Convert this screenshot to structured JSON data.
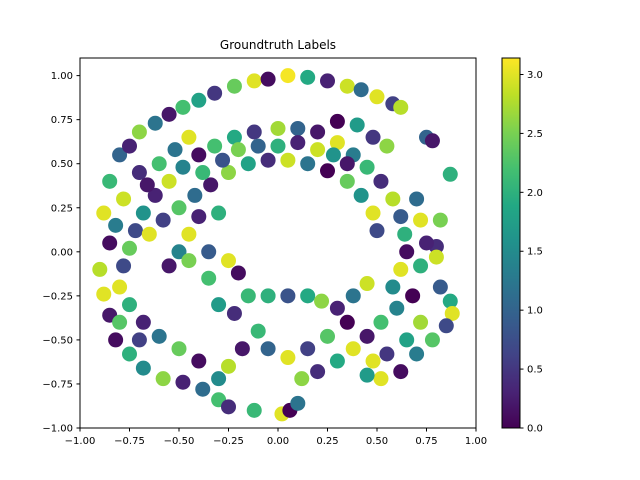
{
  "chart_data": {
    "type": "scatter",
    "title": "Groundtruth Labels",
    "xlabel": "",
    "ylabel": "",
    "xlim": [
      -1.0,
      1.0
    ],
    "ylim": [
      -1.0,
      1.1
    ],
    "x_ticks": [
      -1.0,
      -0.75,
      -0.5,
      -0.25,
      0.0,
      0.25,
      0.5,
      0.75,
      1.0
    ],
    "x_tick_labels": [
      "−1.00",
      "−0.75",
      "−0.50",
      "−0.25",
      "0.00",
      "0.25",
      "0.50",
      "0.75",
      "1.00"
    ],
    "y_ticks": [
      -1.0,
      -0.75,
      -0.5,
      -0.25,
      0.0,
      0.25,
      0.5,
      0.75,
      1.0
    ],
    "y_tick_labels": [
      "−1.00",
      "−0.75",
      "−0.50",
      "−0.25",
      "0.00",
      "0.25",
      "0.50",
      "0.75",
      "1.00"
    ],
    "colormap": "viridis",
    "colorbar_range": [
      0.0,
      3.14
    ],
    "colorbar_ticks": [
      0.0,
      0.5,
      1.0,
      1.5,
      2.0,
      2.5,
      3.0
    ],
    "colorbar_tick_labels": [
      "0.0",
      "0.5",
      "1.0",
      "1.5",
      "2.0",
      "2.5",
      "3.0"
    ],
    "grid": false,
    "points": [
      {
        "x": -0.88,
        "y": 0.22,
        "c": 3.0
      },
      {
        "x": -0.85,
        "y": 0.4,
        "c": 2.1
      },
      {
        "x": -0.8,
        "y": 0.55,
        "c": 1.0
      },
      {
        "x": -0.75,
        "y": 0.6,
        "c": 0.3
      },
      {
        "x": -0.7,
        "y": 0.68,
        "c": 2.6
      },
      {
        "x": -0.62,
        "y": 0.73,
        "c": 1.2
      },
      {
        "x": -0.55,
        "y": 0.78,
        "c": 0.2
      },
      {
        "x": -0.48,
        "y": 0.82,
        "c": 2.2
      },
      {
        "x": -0.4,
        "y": 0.86,
        "c": 1.8
      },
      {
        "x": -0.32,
        "y": 0.9,
        "c": 0.5
      },
      {
        "x": -0.22,
        "y": 0.94,
        "c": 2.4
      },
      {
        "x": -0.12,
        "y": 0.97,
        "c": 3.0
      },
      {
        "x": -0.05,
        "y": 0.98,
        "c": 0.1
      },
      {
        "x": 0.05,
        "y": 1.0,
        "c": 3.1
      },
      {
        "x": 0.15,
        "y": 0.99,
        "c": 1.9
      },
      {
        "x": 0.25,
        "y": 0.97,
        "c": 0.3
      },
      {
        "x": 0.35,
        "y": 0.94,
        "c": 2.9
      },
      {
        "x": 0.42,
        "y": 0.92,
        "c": 1.1
      },
      {
        "x": 0.5,
        "y": 0.88,
        "c": 3.0
      },
      {
        "x": 0.58,
        "y": 0.84,
        "c": 0.6
      },
      {
        "x": 0.62,
        "y": 0.82,
        "c": 2.8
      },
      {
        "x": 0.75,
        "y": 0.65,
        "c": 1.0
      },
      {
        "x": 0.78,
        "y": 0.63,
        "c": 0.2
      },
      {
        "x": 0.87,
        "y": 0.44,
        "c": 2.0
      },
      {
        "x": 0.82,
        "y": 0.18,
        "c": 2.5
      },
      {
        "x": 0.8,
        "y": 0.03,
        "c": 0.4
      },
      {
        "x": 0.8,
        "y": -0.03,
        "c": 2.9
      },
      {
        "x": 0.82,
        "y": -0.2,
        "c": 0.9
      },
      {
        "x": 0.87,
        "y": -0.28,
        "c": 1.9
      },
      {
        "x": 0.88,
        "y": -0.35,
        "c": 3.0
      },
      {
        "x": 0.85,
        "y": -0.42,
        "c": 0.7
      },
      {
        "x": 0.78,
        "y": -0.5,
        "c": 2.3
      },
      {
        "x": 0.7,
        "y": -0.58,
        "c": 1.3
      },
      {
        "x": 0.62,
        "y": -0.68,
        "c": 0.1
      },
      {
        "x": 0.52,
        "y": -0.72,
        "c": 3.0
      },
      {
        "x": 0.45,
        "y": -0.7,
        "c": 1.7
      },
      {
        "x": -0.9,
        "y": -0.1,
        "c": 2.8
      },
      {
        "x": -0.88,
        "y": -0.24,
        "c": 3.0
      },
      {
        "x": -0.85,
        "y": -0.36,
        "c": 0.2
      },
      {
        "x": -0.82,
        "y": -0.5,
        "c": 0.1
      },
      {
        "x": -0.75,
        "y": -0.58,
        "c": 2.0
      },
      {
        "x": -0.68,
        "y": -0.66,
        "c": 1.5
      },
      {
        "x": -0.58,
        "y": -0.72,
        "c": 2.6
      },
      {
        "x": -0.48,
        "y": -0.74,
        "c": 0.3
      },
      {
        "x": -0.38,
        "y": -0.78,
        "c": 1.1
      },
      {
        "x": -0.3,
        "y": -0.84,
        "c": 2.2
      },
      {
        "x": -0.25,
        "y": -0.88,
        "c": 0.4
      },
      {
        "x": -0.12,
        "y": -0.9,
        "c": 2.1
      },
      {
        "x": 0.02,
        "y": -0.92,
        "c": 3.0
      },
      {
        "x": 0.06,
        "y": -0.9,
        "c": 0.0
      },
      {
        "x": 0.1,
        "y": -0.86,
        "c": 1.2
      },
      {
        "x": -0.75,
        "y": 0.02,
        "c": 2.4
      },
      {
        "x": -0.72,
        "y": 0.12,
        "c": 0.7
      },
      {
        "x": -0.68,
        "y": 0.22,
        "c": 1.6
      },
      {
        "x": -0.62,
        "y": 0.32,
        "c": 0.3
      },
      {
        "x": -0.55,
        "y": 0.4,
        "c": 2.9
      },
      {
        "x": -0.48,
        "y": 0.48,
        "c": 1.4
      },
      {
        "x": -0.4,
        "y": 0.55,
        "c": 0.1
      },
      {
        "x": -0.32,
        "y": 0.6,
        "c": 2.2
      },
      {
        "x": -0.22,
        "y": 0.65,
        "c": 1.9
      },
      {
        "x": -0.12,
        "y": 0.68,
        "c": 0.5
      },
      {
        "x": 0.0,
        "y": 0.7,
        "c": 2.7
      },
      {
        "x": 0.1,
        "y": 0.7,
        "c": 1.0
      },
      {
        "x": 0.2,
        "y": 0.68,
        "c": 0.2
      },
      {
        "x": 0.3,
        "y": 0.62,
        "c": 3.0
      },
      {
        "x": 0.38,
        "y": 0.55,
        "c": 1.3
      },
      {
        "x": 0.45,
        "y": 0.48,
        "c": 2.1
      },
      {
        "x": 0.52,
        "y": 0.4,
        "c": 0.4
      },
      {
        "x": 0.58,
        "y": 0.3,
        "c": 2.8
      },
      {
        "x": 0.62,
        "y": 0.2,
        "c": 0.9
      },
      {
        "x": 0.64,
        "y": 0.1,
        "c": 2.0
      },
      {
        "x": 0.65,
        "y": 0.0,
        "c": 0.1
      },
      {
        "x": 0.62,
        "y": -0.1,
        "c": 3.0
      },
      {
        "x": 0.58,
        "y": -0.2,
        "c": 1.5
      },
      {
        "x": -0.65,
        "y": 0.1,
        "c": 3.0
      },
      {
        "x": -0.58,
        "y": 0.18,
        "c": 0.6
      },
      {
        "x": -0.5,
        "y": 0.25,
        "c": 2.3
      },
      {
        "x": -0.42,
        "y": 0.32,
        "c": 1.1
      },
      {
        "x": -0.34,
        "y": 0.38,
        "c": 0.2
      },
      {
        "x": -0.25,
        "y": 0.45,
        "c": 2.6
      },
      {
        "x": -0.15,
        "y": 0.5,
        "c": 1.8
      },
      {
        "x": -0.05,
        "y": 0.52,
        "c": 0.4
      },
      {
        "x": 0.05,
        "y": 0.52,
        "c": 2.9
      },
      {
        "x": 0.15,
        "y": 0.5,
        "c": 1.2
      },
      {
        "x": 0.25,
        "y": 0.46,
        "c": 0.0
      },
      {
        "x": 0.35,
        "y": 0.4,
        "c": 2.4
      },
      {
        "x": 0.42,
        "y": 0.32,
        "c": 1.6
      },
      {
        "x": 0.48,
        "y": 0.22,
        "c": 3.0
      },
      {
        "x": 0.5,
        "y": 0.12,
        "c": 0.7
      },
      {
        "x": -0.3,
        "y": 0.22,
        "c": 2.0
      },
      {
        "x": -0.4,
        "y": 0.2,
        "c": 0.3
      },
      {
        "x": -0.45,
        "y": 0.1,
        "c": 3.0
      },
      {
        "x": -0.5,
        "y": 0.0,
        "c": 1.4
      },
      {
        "x": -0.55,
        "y": -0.08,
        "c": 0.2
      },
      {
        "x": -0.45,
        "y": -0.05,
        "c": 2.5
      },
      {
        "x": -0.35,
        "y": 0.0,
        "c": 0.9
      },
      {
        "x": -0.25,
        "y": -0.05,
        "c": 3.0
      },
      {
        "x": -0.2,
        "y": -0.12,
        "c": 0.1
      },
      {
        "x": -0.35,
        "y": -0.15,
        "c": 2.2
      },
      {
        "x": -0.3,
        "y": -0.3,
        "c": 1.7
      },
      {
        "x": -0.22,
        "y": -0.35,
        "c": 0.4
      },
      {
        "x": -0.15,
        "y": -0.25,
        "c": 2.1
      },
      {
        "x": -0.05,
        "y": -0.25,
        "c": 2.0
      },
      {
        "x": 0.05,
        "y": -0.25,
        "c": 0.8
      },
      {
        "x": 0.15,
        "y": -0.25,
        "c": 1.9
      },
      {
        "x": 0.22,
        "y": -0.28,
        "c": 2.6
      },
      {
        "x": 0.3,
        "y": -0.32,
        "c": 0.3
      },
      {
        "x": 0.38,
        "y": -0.25,
        "c": 1.2
      },
      {
        "x": 0.45,
        "y": -0.18,
        "c": 2.9
      },
      {
        "x": 0.35,
        "y": -0.4,
        "c": 0.0
      },
      {
        "x": 0.25,
        "y": -0.48,
        "c": 2.3
      },
      {
        "x": 0.15,
        "y": -0.55,
        "c": 0.6
      },
      {
        "x": 0.05,
        "y": -0.6,
        "c": 3.0
      },
      {
        "x": -0.05,
        "y": -0.55,
        "c": 1.0
      },
      {
        "x": -0.1,
        "y": -0.45,
        "c": 2.1
      },
      {
        "x": -0.18,
        "y": -0.55,
        "c": 0.2
      },
      {
        "x": -0.25,
        "y": -0.65,
        "c": 2.8
      },
      {
        "x": -0.3,
        "y": -0.72,
        "c": 1.5
      },
      {
        "x": -0.4,
        "y": -0.62,
        "c": 0.1
      },
      {
        "x": -0.5,
        "y": -0.55,
        "c": 2.4
      },
      {
        "x": -0.6,
        "y": -0.48,
        "c": 1.2
      },
      {
        "x": -0.68,
        "y": -0.4,
        "c": 0.3
      },
      {
        "x": -0.75,
        "y": -0.3,
        "c": 2.0
      },
      {
        "x": -0.8,
        "y": -0.2,
        "c": 3.0
      },
      {
        "x": -0.78,
        "y": -0.08,
        "c": 0.7
      },
      {
        "x": 0.12,
        "y": -0.72,
        "c": 2.6
      },
      {
        "x": 0.2,
        "y": -0.68,
        "c": 0.4
      },
      {
        "x": 0.3,
        "y": -0.62,
        "c": 1.9
      },
      {
        "x": 0.38,
        "y": -0.55,
        "c": 3.0
      },
      {
        "x": 0.45,
        "y": -0.48,
        "c": 0.2
      },
      {
        "x": 0.52,
        "y": -0.4,
        "c": 2.2
      },
      {
        "x": 0.6,
        "y": -0.32,
        "c": 1.4
      },
      {
        "x": 0.68,
        "y": -0.25,
        "c": 0.0
      },
      {
        "x": 0.72,
        "y": -0.4,
        "c": 2.7
      },
      {
        "x": 0.65,
        "y": -0.5,
        "c": 1.8
      },
      {
        "x": 0.55,
        "y": -0.58,
        "c": 0.5
      },
      {
        "x": 0.48,
        "y": -0.62,
        "c": 3.0
      },
      {
        "x": -0.1,
        "y": 0.6,
        "c": 1.0
      },
      {
        "x": 0.0,
        "y": 0.6,
        "c": 2.0
      },
      {
        "x": 0.1,
        "y": 0.62,
        "c": 0.3
      },
      {
        "x": 0.2,
        "y": 0.58,
        "c": 2.9
      },
      {
        "x": 0.28,
        "y": 0.55,
        "c": 1.6
      },
      {
        "x": 0.35,
        "y": 0.5,
        "c": 0.2
      },
      {
        "x": -0.2,
        "y": 0.58,
        "c": 2.5
      },
      {
        "x": -0.28,
        "y": 0.52,
        "c": 0.8
      },
      {
        "x": -0.38,
        "y": 0.45,
        "c": 2.1
      },
      {
        "x": -0.7,
        "y": 0.45,
        "c": 0.4
      },
      {
        "x": -0.78,
        "y": 0.3,
        "c": 2.9
      },
      {
        "x": -0.82,
        "y": 0.15,
        "c": 1.3
      },
      {
        "x": -0.85,
        "y": 0.05,
        "c": 0.1
      },
      {
        "x": -0.8,
        "y": -0.4,
        "c": 2.3
      },
      {
        "x": -0.7,
        "y": -0.5,
        "c": 0.6
      },
      {
        "x": 0.7,
        "y": 0.3,
        "c": 1.1
      },
      {
        "x": 0.72,
        "y": 0.18,
        "c": 3.0
      },
      {
        "x": 0.75,
        "y": 0.05,
        "c": 0.3
      },
      {
        "x": 0.72,
        "y": -0.08,
        "c": 2.0
      },
      {
        "x": 0.55,
        "y": 0.6,
        "c": 2.6
      },
      {
        "x": 0.48,
        "y": 0.65,
        "c": 0.5
      },
      {
        "x": 0.4,
        "y": 0.72,
        "c": 1.7
      },
      {
        "x": 0.3,
        "y": 0.74,
        "c": 0.0
      },
      {
        "x": -0.45,
        "y": 0.65,
        "c": 3.0
      },
      {
        "x": -0.52,
        "y": 0.58,
        "c": 1.2
      },
      {
        "x": -0.6,
        "y": 0.5,
        "c": 2.2
      },
      {
        "x": -0.66,
        "y": 0.38,
        "c": 0.2
      }
    ]
  }
}
